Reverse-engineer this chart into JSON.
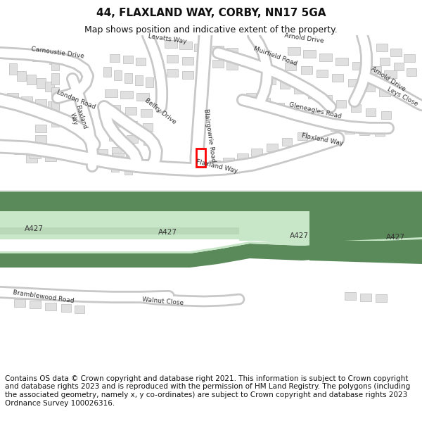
{
  "title": "44, FLAXLAND WAY, CORBY, NN17 5GA",
  "subtitle": "Map shows position and indicative extent of the property.",
  "footer": "Contains OS data © Crown copyright and database right 2021. This information is subject to Crown copyright and database rights 2023 and is reproduced with the permission of HM Land Registry. The polygons (including the associated geometry, namely x, y co-ordinates) are subject to Crown copyright and database rights 2023 Ordnance Survey 100026316.",
  "bg_color": "#ffffff",
  "map_bg": "#f8f8f8",
  "road_color": "#ffffff",
  "road_outline": "#cccccc",
  "building_color": "#e0e0e0",
  "building_outline": "#bbbbbb",
  "green_dark": "#5a8a5a",
  "green_light": "#c8e6c8",
  "road_label_color": "#333333",
  "highlight_color": "#ff0000",
  "title_fontsize": 11,
  "subtitle_fontsize": 9,
  "footer_fontsize": 7.5,
  "label_fontsize": 6.5,
  "a427_fontsize": 7.5
}
